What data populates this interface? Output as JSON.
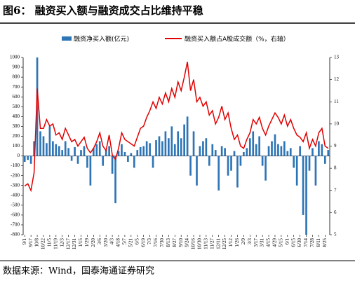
{
  "chart_data": {
    "type": "bar",
    "title": "图6：  融资买入额与融资成交占比维持平稳",
    "source": "数据来源：Wind，国泰海通证券研究",
    "categories": [
      "9/1",
      null,
      "9/17",
      null,
      "10/8",
      null,
      "10/22",
      null,
      "11/5",
      null,
      "11/19",
      null,
      "12/3",
      null,
      "12/17",
      null,
      "12/31",
      null,
      "1/15",
      null,
      "1/29",
      null,
      "2/20",
      null,
      "3/6",
      null,
      "3/20",
      null,
      "4/3",
      null,
      "4/18",
      null,
      "5/7",
      null,
      "5/21",
      null,
      "6/5",
      null,
      "6/19",
      null,
      "7/3",
      null,
      "7/16",
      null,
      "7/30",
      null,
      "8/13",
      null,
      "8/27",
      null,
      "9/10",
      null,
      "9/24",
      null,
      "10/16",
      null,
      "10/30",
      null,
      "11/13",
      null,
      "11/27",
      null,
      "12/11",
      null,
      "12/25",
      null,
      "1/12",
      null,
      "1/26",
      null,
      "2/9",
      null,
      "3/3",
      null,
      "3/17",
      null,
      "3/31",
      null,
      "4/15",
      null,
      "4/29",
      null,
      "5/15",
      null,
      "6/1",
      null,
      "6/15",
      null,
      "6/30",
      null,
      "7/14",
      null,
      "7/28",
      null,
      "8/11",
      null,
      "8/25",
      null
    ],
    "series": [
      {
        "name": "融资净买入额(亿元)",
        "color": "#2e75b6",
        "type": "bar",
        "values": [
          -60,
          -40,
          -80,
          150,
          1000,
          250,
          200,
          130,
          300,
          150,
          120,
          100,
          60,
          150,
          80,
          -50,
          90,
          -80,
          60,
          100,
          -120,
          -300,
          80,
          120,
          150,
          -100,
          60,
          100,
          -180,
          -480,
          50,
          120,
          40,
          -60,
          30,
          -120,
          60,
          90,
          100,
          150,
          130,
          -120,
          160,
          200,
          150,
          250,
          180,
          300,
          120,
          250,
          180,
          320,
          400,
          -200,
          250,
          -300,
          100,
          150,
          180,
          -100,
          120,
          60,
          -350,
          100,
          80,
          -200,
          -150,
          50,
          -320,
          -100,
          40,
          80,
          180,
          250,
          120,
          200,
          -100,
          -250,
          100,
          150,
          220,
          120,
          100,
          150,
          50,
          80,
          -120,
          -300,
          100,
          -600,
          -800,
          -150,
          80,
          -300,
          150,
          120,
          -80,
          60
        ]
      },
      {
        "name": "融资买入额占A股成交额（%，右轴）",
        "color": "#e00000",
        "type": "line",
        "axis": "y2",
        "values": [
          7.2,
          7.3,
          7.0,
          7.8,
          11.6,
          9.8,
          9.8,
          10.2,
          9.9,
          10.0,
          9.5,
          9.6,
          9.3,
          9.8,
          9.5,
          9.2,
          9.3,
          9.0,
          9.2,
          9.4,
          8.9,
          8.7,
          8.9,
          9.2,
          9.6,
          9.0,
          8.8,
          9.5,
          8.6,
          8.4,
          8.9,
          9.6,
          9.3,
          9.2,
          9.1,
          9.0,
          9.4,
          9.8,
          9.9,
          10.3,
          10.6,
          11.0,
          10.7,
          11.2,
          10.9,
          11.4,
          11.0,
          11.6,
          11.2,
          11.9,
          11.5,
          12.1,
          12.8,
          11.5,
          12.0,
          11.0,
          11.2,
          10.8,
          11.0,
          10.4,
          10.6,
          10.0,
          10.3,
          10.8,
          10.2,
          10.5,
          9.8,
          9.3,
          9.5,
          9.0,
          8.9,
          9.3,
          9.6,
          10.2,
          10.0,
          10.3,
          9.8,
          9.5,
          9.9,
          10.2,
          10.5,
          10.3,
          10.0,
          10.4,
          9.9,
          10.2,
          9.8,
          9.5,
          9.4,
          9.2,
          9.6,
          8.9,
          9.3,
          9.0,
          9.6,
          9.8,
          9.0,
          8.9
        ]
      }
    ],
    "ylim": [
      -800,
      1000
    ],
    "yticks": [
      -800,
      -700,
      -600,
      -500,
      -400,
      -300,
      -200,
      -100,
      0,
      100,
      200,
      300,
      400,
      500,
      600,
      700,
      800,
      900,
      1000
    ],
    "y2lim": [
      5,
      13
    ],
    "y2ticks": [
      5,
      6,
      7,
      8,
      9,
      10,
      11,
      12,
      13
    ]
  }
}
